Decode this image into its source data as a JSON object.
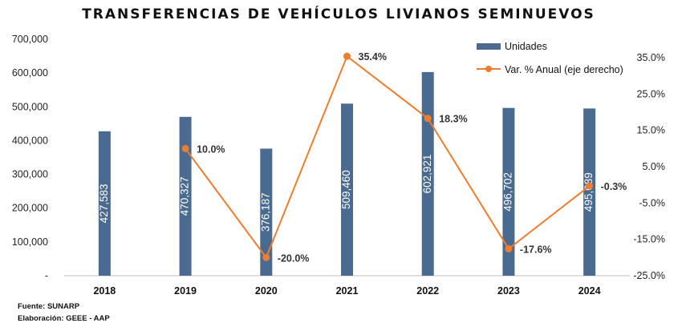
{
  "chart_data": {
    "type": "bar",
    "title": "TRANSFERENCIAS DE VEHÍCULOS LIVIANOS SEMINUEVOS",
    "categories": [
      "2018",
      "2019",
      "2020",
      "2021",
      "2022",
      "2023",
      "2024"
    ],
    "series": [
      {
        "name": "Unidades",
        "type": "bar",
        "axis": "left",
        "color": "#4a6a90",
        "values": [
          427583,
          470327,
          376187,
          509460,
          602921,
          496702,
          495089
        ],
        "labels": [
          "427,583",
          "470,327",
          "376,187",
          "509,460",
          "602,921",
          "496,702",
          "495,089"
        ]
      },
      {
        "name": "Var. % Anual (eje derecho)",
        "type": "line",
        "axis": "right",
        "color": "#ed7d31",
        "x": [
          "2019",
          "2020",
          "2021",
          "2022",
          "2023",
          "2024"
        ],
        "values": [
          10.0,
          -20.0,
          35.4,
          18.3,
          -17.6,
          -0.3
        ],
        "labels": [
          "10.0%",
          "-20.0%",
          "35.4%",
          "18.3%",
          "-17.6%",
          "-0.3%"
        ]
      }
    ],
    "y_left": {
      "range": [
        0,
        700000
      ],
      "ticks": [
        0,
        100000,
        200000,
        300000,
        400000,
        500000,
        600000,
        700000
      ],
      "tick_labels": [
        "-",
        "100,000",
        "200,000",
        "300,000",
        "400,000",
        "500,000",
        "600,000",
        "700,000"
      ]
    },
    "y_right": {
      "range": [
        -25,
        40
      ],
      "ticks": [
        -25,
        -15,
        -5,
        5,
        15,
        25,
        35
      ],
      "tick_labels": [
        "-25.0%",
        "-15.0%",
        "-5.0%",
        "5.0%",
        "15.0%",
        "25.0%",
        "35.0%"
      ]
    },
    "grid": false,
    "legend": "top-right"
  },
  "footer": {
    "source": "Fuente: SUNARP",
    "credit": "Elaboración: GEEE - AAP"
  }
}
